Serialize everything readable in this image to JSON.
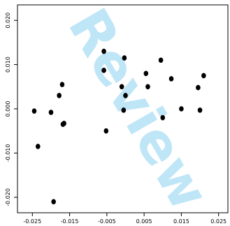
{
  "chart_data": {
    "type": "scatter",
    "title": "",
    "xlabel": "",
    "ylabel": "",
    "xlim": [
      -0.029,
      0.0275
    ],
    "ylim": [
      -0.0235,
      0.0235
    ],
    "x_ticks": [
      -0.025,
      -0.015,
      -0.005,
      0.005,
      0.015,
      0.025
    ],
    "x_tick_labels": [
      "-0.025",
      "-0.015",
      "-0.005",
      "0.005",
      "0.015",
      "0.025"
    ],
    "y_ticks": [
      -0.02,
      -0.01,
      0.0,
      0.01,
      0.02
    ],
    "y_tick_labels": [
      "-0.020",
      "-0.010",
      "0.000",
      "0.010",
      "0.020"
    ],
    "grid": false,
    "legend": "none",
    "point_color": "#000000",
    "points": [
      {
        "x": -0.0245,
        "y": -0.0005
      },
      {
        "x": -0.0235,
        "y": -0.0085
      },
      {
        "x": -0.02,
        "y": -0.0008
      },
      {
        "x": -0.0193,
        "y": -0.021
      },
      {
        "x": -0.0178,
        "y": 0.003
      },
      {
        "x": -0.017,
        "y": 0.0055
      },
      {
        "x": -0.0168,
        "y": -0.0035
      },
      {
        "x": -0.0165,
        "y": -0.0033
      },
      {
        "x": -0.0058,
        "y": 0.013
      },
      {
        "x": -0.0058,
        "y": 0.0087
      },
      {
        "x": -0.0052,
        "y": -0.005
      },
      {
        "x": -0.001,
        "y": 0.005
      },
      {
        "x": -0.0003,
        "y": 0.0115
      },
      {
        "x": -0.0005,
        "y": -0.0003
      },
      {
        "x": 0.0,
        "y": 0.003
      },
      {
        "x": 0.0055,
        "y": 0.008
      },
      {
        "x": 0.006,
        "y": 0.005
      },
      {
        "x": 0.0095,
        "y": 0.011
      },
      {
        "x": 0.01,
        "y": -0.002
      },
      {
        "x": 0.0123,
        "y": 0.0068
      },
      {
        "x": 0.015,
        "y": 0.0
      },
      {
        "x": 0.0195,
        "y": 0.0048
      },
      {
        "x": 0.02,
        "y": -0.0003
      },
      {
        "x": 0.021,
        "y": 0.0075
      }
    ]
  },
  "watermark": {
    "text": "Review",
    "color": "#bfe6f7"
  }
}
